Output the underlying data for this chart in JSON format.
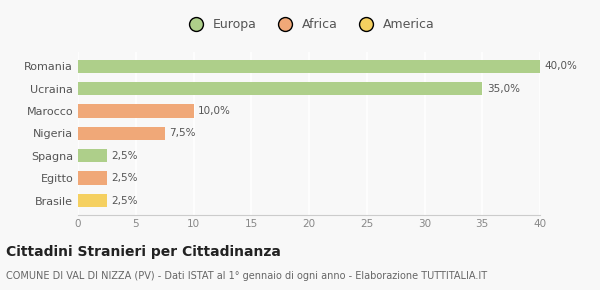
{
  "categories": [
    "Romania",
    "Ucraina",
    "Marocco",
    "Nigeria",
    "Spagna",
    "Egitto",
    "Brasile"
  ],
  "values": [
    40.0,
    35.0,
    10.0,
    7.5,
    2.5,
    2.5,
    2.5
  ],
  "bar_colors": [
    "#aecf8a",
    "#aecf8a",
    "#f0a878",
    "#f0a878",
    "#aecf8a",
    "#f0a878",
    "#f5d060"
  ],
  "labels": [
    "40,0%",
    "35,0%",
    "10,0%",
    "7,5%",
    "2,5%",
    "2,5%",
    "2,5%"
  ],
  "legend": [
    {
      "label": "Europa",
      "color": "#aecf8a"
    },
    {
      "label": "Africa",
      "color": "#f0a878"
    },
    {
      "label": "America",
      "color": "#f5d060"
    }
  ],
  "xlim": [
    0,
    40
  ],
  "xticks": [
    0,
    5,
    10,
    15,
    20,
    25,
    30,
    35,
    40
  ],
  "title": "Cittadini Stranieri per Cittadinanza",
  "subtitle": "COMUNE DI VAL DI NIZZA (PV) - Dati ISTAT al 1° gennaio di ogni anno - Elaborazione TUTTITALIA.IT",
  "background_color": "#f8f8f8",
  "grid_color": "#ffffff",
  "bar_height": 0.6,
  "label_fontsize": 7.5,
  "ytick_fontsize": 8,
  "xtick_fontsize": 7.5,
  "title_fontsize": 10,
  "subtitle_fontsize": 7
}
